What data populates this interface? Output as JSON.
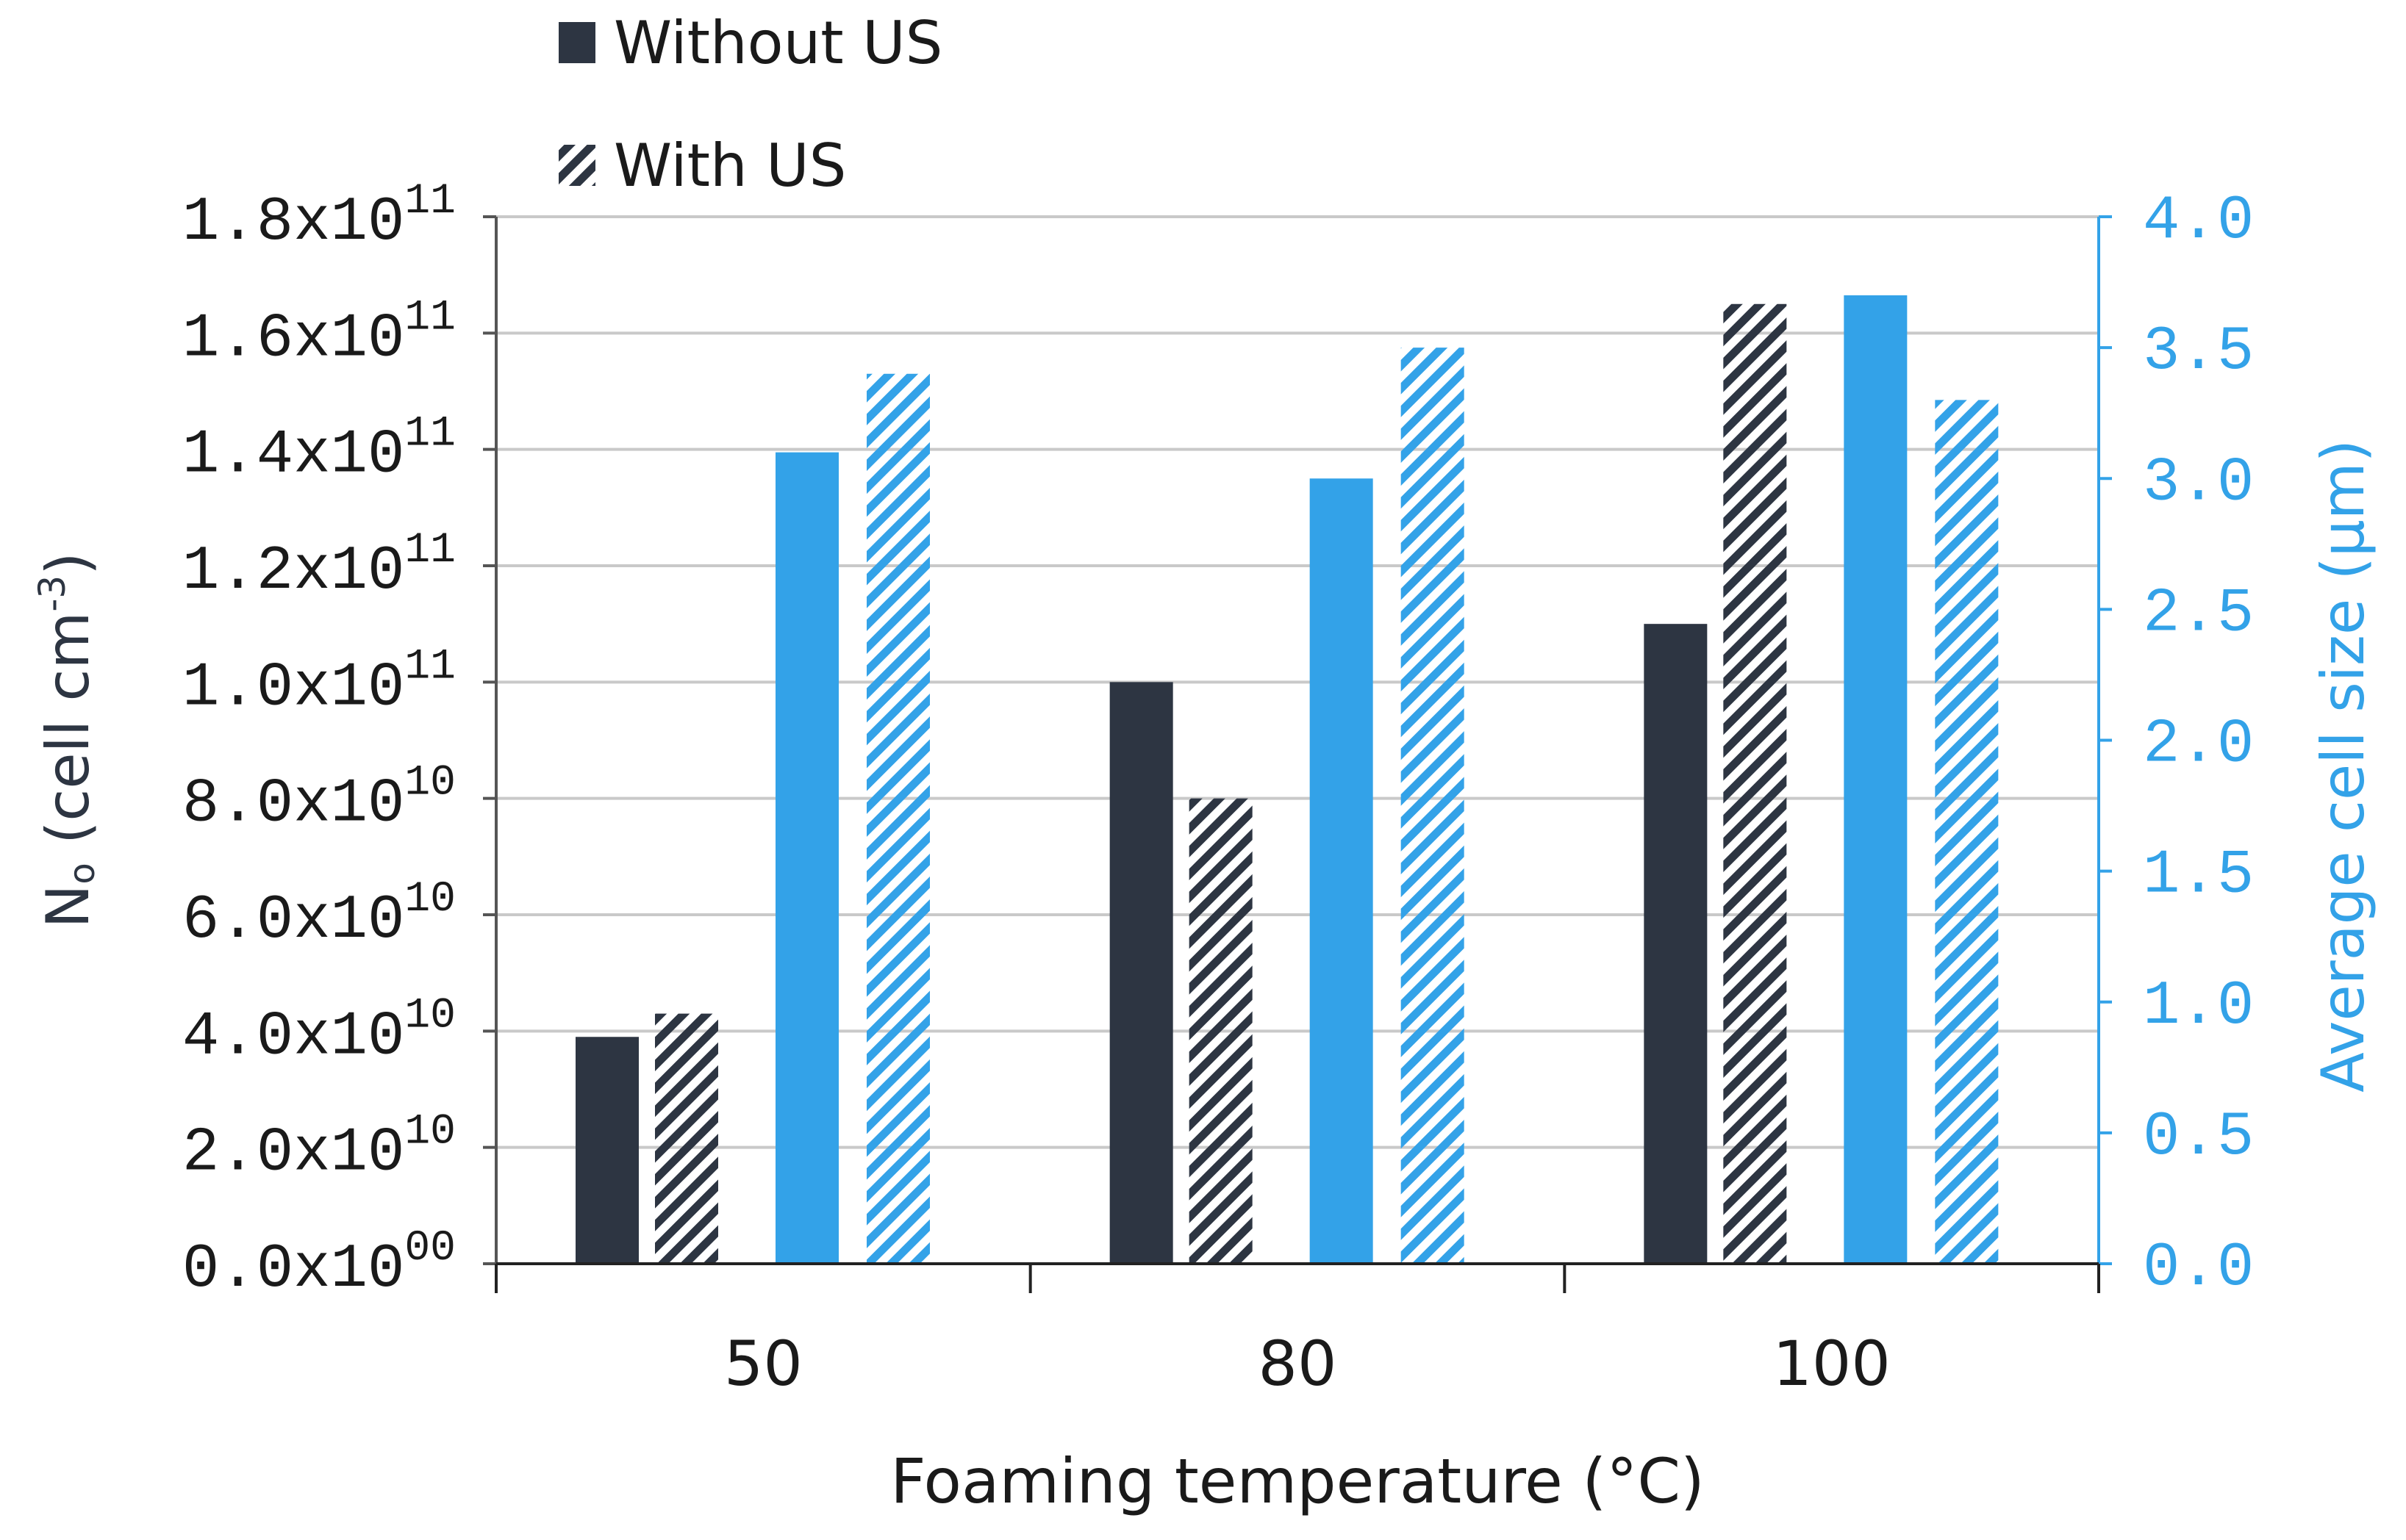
{
  "chart_data": {
    "type": "bar",
    "categories": [
      "50",
      "80",
      "100"
    ],
    "xlabel": "Foaming temperature (°C)",
    "ylabel_left": {
      "base": "N",
      "sub": "o",
      "text": " (cell cm",
      "sup": "-3",
      "close": ")"
    },
    "ylabel_right": "Average cell size (μm)",
    "ylim_left": [
      0,
      180000000000.0
    ],
    "ylim_right": [
      0,
      4.0
    ],
    "left_ticks": [
      {
        "mantissa": "0.0x10",
        "exponent": "00",
        "value": 0
      },
      {
        "mantissa": "2.0x10",
        "exponent": "10",
        "value": 20000000000.0
      },
      {
        "mantissa": "4.0x10",
        "exponent": "10",
        "value": 40000000000.0
      },
      {
        "mantissa": "6.0x10",
        "exponent": "10",
        "value": 60000000000.0
      },
      {
        "mantissa": "8.0x10",
        "exponent": "10",
        "value": 80000000000.0
      },
      {
        "mantissa": "1.0x10",
        "exponent": "11",
        "value": 100000000000.0
      },
      {
        "mantissa": "1.2x10",
        "exponent": "11",
        "value": 120000000000.0
      },
      {
        "mantissa": "1.4x10",
        "exponent": "11",
        "value": 140000000000.0
      },
      {
        "mantissa": "1.6x10",
        "exponent": "11",
        "value": 160000000000.0
      },
      {
        "mantissa": "1.8x10",
        "exponent": "11",
        "value": 180000000000.0
      }
    ],
    "right_ticks": [
      "0.0",
      "0.5",
      "1.0",
      "1.5",
      "2.0",
      "2.5",
      "3.0",
      "3.5",
      "4.0"
    ],
    "grid": true,
    "legend_position": "top-left",
    "legend": [
      {
        "label": "Without US",
        "pattern": "solid",
        "color": "#2d3542"
      },
      {
        "label": "With US",
        "pattern": "hatched",
        "color": "#2d3542"
      }
    ],
    "series": [
      {
        "name": "Nₒ without US",
        "axis": "left",
        "pattern": "solid",
        "color": "#2d3542",
        "values": [
          39000000000.0,
          100000000000.0,
          110000000000.0
        ]
      },
      {
        "name": "Nₒ with US",
        "axis": "left",
        "pattern": "hatched",
        "color": "#2d3542",
        "values": [
          43000000000.0,
          80000000000.0,
          165000000000.0
        ]
      },
      {
        "name": "Cell size without US",
        "axis": "right",
        "pattern": "solid",
        "color": "#33a2e8",
        "values": [
          3.1,
          3.0,
          3.7
        ]
      },
      {
        "name": "Cell size with US",
        "axis": "right",
        "pattern": "hatched",
        "color": "#33a2e8",
        "values": [
          3.4,
          3.5,
          3.3
        ]
      }
    ]
  }
}
